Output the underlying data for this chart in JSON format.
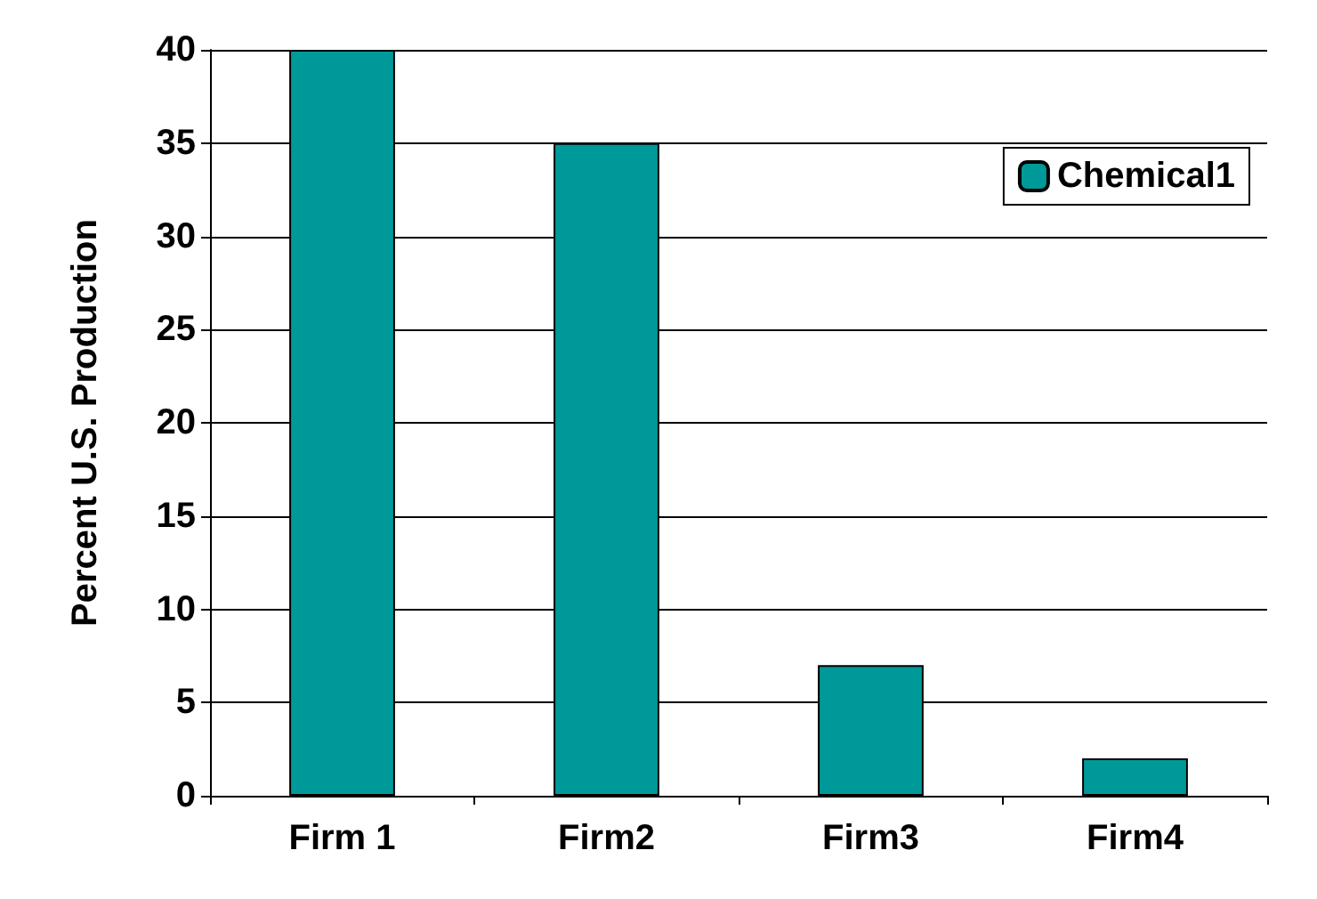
{
  "chart_data": {
    "type": "bar",
    "ylabel": "Percent U.S. Production",
    "categories": [
      "Firm 1",
      "Firm2",
      "Firm3",
      "Firm4"
    ],
    "series": [
      {
        "name": "Chemical1",
        "color": "#009999",
        "values": [
          40,
          35,
          7,
          2
        ]
      }
    ],
    "ylim": [
      0,
      40
    ],
    "yticks": [
      0,
      5,
      10,
      15,
      20,
      25,
      30,
      35,
      40
    ],
    "grid": "y",
    "legend": "top right"
  }
}
